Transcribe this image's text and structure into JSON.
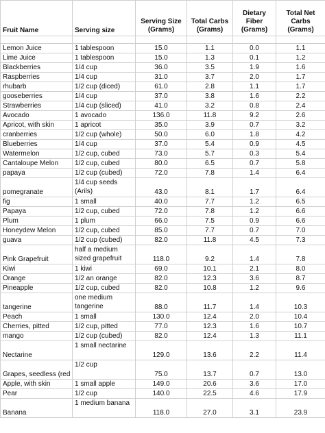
{
  "headers": {
    "fruit_name": "Fruit Name",
    "serving_size": "Serving size",
    "serving_grams": "Serving Size (Grams)",
    "total_carbs": "Total Carbs (Grams)",
    "dietary_fiber": "Dietary Fiber (Grams)",
    "net_carbs": "Total Net Carbs (Grams)"
  },
  "rows": [
    {
      "name": "Lemon Juice",
      "serving": "1 tablespoon",
      "grams": "15.0",
      "carbs": "1.1",
      "fiber": "0.0",
      "net": "1.1"
    },
    {
      "name": "Lime Juice",
      "serving": "1 tablespoon",
      "grams": "15.0",
      "carbs": "1.3",
      "fiber": "0.1",
      "net": "1.2"
    },
    {
      "name": "Blackberries",
      "serving": "1/4 cup",
      "grams": "36.0",
      "carbs": "3.5",
      "fiber": "1.9",
      "net": "1.6"
    },
    {
      "name": "Raspberries",
      "serving": "1/4 cup",
      "grams": "31.0",
      "carbs": "3.7",
      "fiber": "2.0",
      "net": "1.7"
    },
    {
      "name": "rhubarb",
      "serving": "1/2 cup (diced)",
      "grams": "61.0",
      "carbs": "2.8",
      "fiber": "1.1",
      "net": "1.7"
    },
    {
      "name": "gooseberries",
      "serving": "1/4 cup",
      "grams": "37.0",
      "carbs": "3.8",
      "fiber": "1.6",
      "net": "2.2"
    },
    {
      "name": "Strawberries",
      "serving": "1/4 cup (sliced)",
      "grams": "41.0",
      "carbs": "3.2",
      "fiber": "0.8",
      "net": "2.4"
    },
    {
      "name": "Avocado",
      "serving": "1 avocado",
      "grams": "136.0",
      "carbs": "11.8",
      "fiber": "9.2",
      "net": "2.6"
    },
    {
      "name": "Apricot, with skin",
      "serving": "1 apricot",
      "grams": "35.0",
      "carbs": "3.9",
      "fiber": "0.7",
      "net": "3.2"
    },
    {
      "name": "cranberries",
      "serving": "1/2 cup (whole)",
      "grams": "50.0",
      "carbs": "6.0",
      "fiber": "1.8",
      "net": "4.2"
    },
    {
      "name": "Blueberries",
      "serving": "1/4 cup",
      "grams": "37.0",
      "carbs": "5.4",
      "fiber": "0.9",
      "net": "4.5"
    },
    {
      "name": "Watermelon",
      "serving": "1/2 cup, cubed",
      "grams": "73.0",
      "carbs": "5.7",
      "fiber": "0.3",
      "net": "5.4"
    },
    {
      "name": "Cantaloupe Melon",
      "serving": "1/2 cup, cubed",
      "grams": "80.0",
      "carbs": "6.5",
      "fiber": "0.7",
      "net": "5.8"
    },
    {
      "name": "papaya",
      "serving": "1/2 cup (cubed)",
      "grams": "72.0",
      "carbs": "7.8",
      "fiber": "1.4",
      "net": "6.4"
    },
    {
      "name": "pomegranate",
      "serving": "1/4 cup seeds (Arils)",
      "grams": "43.0",
      "carbs": "8.1",
      "fiber": "1.7",
      "net": "6.4",
      "two": true
    },
    {
      "name": "fig",
      "serving": "1 small",
      "grams": "40.0",
      "carbs": "7.7",
      "fiber": "1.2",
      "net": "6.5"
    },
    {
      "name": "Papaya",
      "serving": "1/2 cup, cubed",
      "grams": "72.0",
      "carbs": "7.8",
      "fiber": "1.2",
      "net": "6.6"
    },
    {
      "name": "Plum",
      "serving": "1 plum",
      "grams": "66.0",
      "carbs": "7.5",
      "fiber": "0.9",
      "net": "6.6"
    },
    {
      "name": "Honeydew Melon",
      "serving": "1/2 cup, cubed",
      "grams": "85.0",
      "carbs": "7.7",
      "fiber": "0.7",
      "net": "7.0"
    },
    {
      "name": "guava",
      "serving": "1/2 cup (cubed)",
      "grams": "82.0",
      "carbs": "11.8",
      "fiber": "4.5",
      "net": "7.3"
    },
    {
      "name": " Pink Grapefruit",
      "serving": "half a medium sized grapefruit",
      "grams": "118.0",
      "carbs": "9.2",
      "fiber": "1.4",
      "net": "7.8",
      "two": true
    },
    {
      "name": "Kiwi",
      "serving": "1 kiwi",
      "grams": "69.0",
      "carbs": "10.1",
      "fiber": "2.1",
      "net": "8.0"
    },
    {
      "name": "Orange",
      "serving": "1/2 an orange",
      "grams": "82.0",
      "carbs": "12.3",
      "fiber": "3.6",
      "net": "8.7"
    },
    {
      "name": "Pineapple",
      "serving": "1/2 cup, cubed",
      "grams": "82.0",
      "carbs": "10.8",
      "fiber": "1.2",
      "net": "9.6"
    },
    {
      "name": "tangerine",
      "serving": "one medium tangerine",
      "grams": "88.0",
      "carbs": "11.7",
      "fiber": "1.4",
      "net": "10.3",
      "two": true
    },
    {
      "name": "Peach",
      "serving": "1 small",
      "grams": "130.0",
      "carbs": "12.4",
      "fiber": "2.0",
      "net": "10.4"
    },
    {
      "name": "Cherries, pitted",
      "serving": "1/2 cup, pitted",
      "grams": "77.0",
      "carbs": "12.3",
      "fiber": "1.6",
      "net": "10.7"
    },
    {
      "name": "mango",
      "serving": "1/2 cup (cubed)",
      "grams": "82.0",
      "carbs": "12.4",
      "fiber": "1.3",
      "net": "11.1"
    },
    {
      "name": "Nectarine",
      "serving": "1 small nectarine",
      "grams": "129.0",
      "carbs": "13.6",
      "fiber": "2.2",
      "net": "11.4",
      "two": true
    },
    {
      "name": "Grapes, seedless (red or green)",
      "serving": "1/2 cup",
      "grams": "75.0",
      "carbs": "13.7",
      "fiber": "0.7",
      "net": "13.0",
      "two": true
    },
    {
      "name": "Apple, with skin",
      "serving": "1 small apple",
      "grams": "149.0",
      "carbs": "20.6",
      "fiber": "3.6",
      "net": "17.0"
    },
    {
      "name": "Pear",
      "serving": "1/2 cup",
      "grams": "140.0",
      "carbs": "22.5",
      "fiber": "4.6",
      "net": "17.9"
    },
    {
      "name": "Banana",
      "serving": "1 medium banana",
      "grams": "118.0",
      "carbs": "27.0",
      "fiber": "3.1",
      "net": "23.9",
      "two": true
    }
  ]
}
